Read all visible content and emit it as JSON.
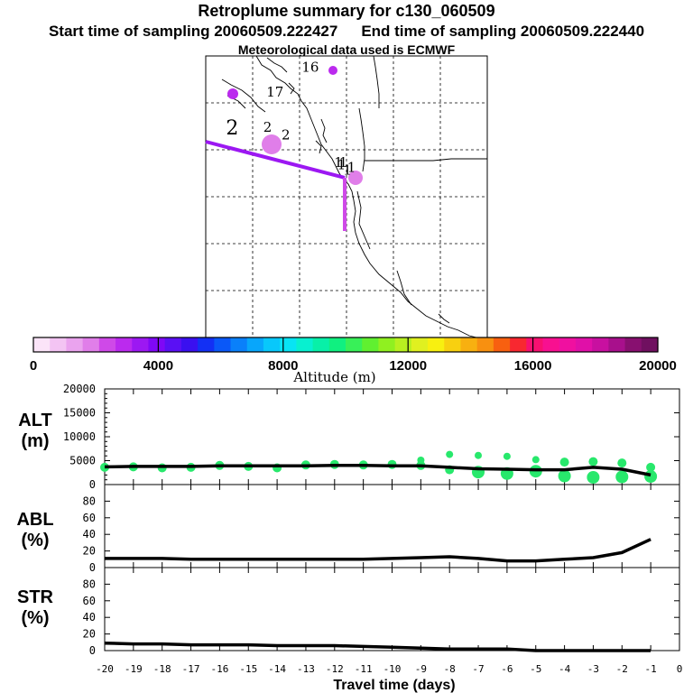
{
  "header": {
    "title": "Retroplume summary for c130_060509",
    "start": "Start time of sampling 20060509.222427",
    "end": "End time of sampling 20060509.222440",
    "met": "Meteorological data used is ECMWF"
  },
  "map": {
    "labels": [
      {
        "text": "16",
        "lon": 9.5,
        "lat": 10.6
      },
      {
        "text": "17",
        "lon": 6.0,
        "lat": 9.6
      },
      {
        "text": "2",
        "lon": 2.0,
        "lat": 8.1
      },
      {
        "text": "2",
        "lon": 5.7,
        "lat": 8.2
      },
      {
        "text": "2",
        "lon": 7.5,
        "lat": 7.9
      },
      {
        "text": "1",
        "lon": 12.7,
        "lat": 6.8
      },
      {
        "text": "1",
        "lon": 13.0,
        "lat": 6.7
      },
      {
        "text": "1",
        "lon": 13.2,
        "lat": 6.8
      },
      {
        "text": "1",
        "lon": 13.6,
        "lat": 6.5
      },
      {
        "text": "1",
        "lon": 14.0,
        "lat": 6.6
      }
    ]
  },
  "colorbar": {
    "label": "Altitude (m)",
    "ticks": [
      "0",
      "4000",
      "8000",
      "12000",
      "16000",
      "20000"
    ],
    "colors": [
      "#fbe4f8",
      "#f3c4f3",
      "#eaa3ee",
      "#e07ee9",
      "#cf49e8",
      "#bb2aee",
      "#9c18f2",
      "#7f08f6",
      "#5a10f4",
      "#3a10f0",
      "#1330f4",
      "#0a58f8",
      "#0a80fa",
      "#08a6fb",
      "#08c8fb",
      "#08e4f4",
      "#08f0d0",
      "#08f0a8",
      "#10f080",
      "#38f058",
      "#60f030",
      "#90f020",
      "#b8f020",
      "#e0f020",
      "#f8f010",
      "#f8d010",
      "#f8b010",
      "#f89010",
      "#f86010",
      "#f82830",
      "#f81070",
      "#f81090",
      "#f010a0",
      "#e010a8",
      "#c810a0",
      "#a8108c",
      "#881070",
      "#701060"
    ]
  },
  "chart_data": [
    {
      "type": "line",
      "name": "ALT",
      "ylabel": "ALT (m)",
      "ylim": [
        0,
        20000
      ],
      "yticks": [
        "20000",
        "15000",
        "10000",
        "5000",
        "0"
      ],
      "x": [
        -20,
        -19,
        -18,
        -17,
        -16,
        -15,
        -14,
        -13,
        -12,
        -11,
        -10,
        -9,
        -8,
        -7,
        -6,
        -5,
        -4,
        -3,
        -2,
        -1
      ],
      "values": [
        3700,
        3800,
        3800,
        3800,
        3900,
        3900,
        3900,
        3900,
        4000,
        4000,
        3900,
        3900,
        3600,
        3300,
        3200,
        3100,
        3100,
        3600,
        3200,
        2000
      ],
      "scatter": [
        [
          -20,
          3600
        ],
        [
          -19,
          3700
        ],
        [
          -18,
          3500
        ],
        [
          -17,
          3600
        ],
        [
          -16,
          4000
        ],
        [
          -15,
          3800
        ],
        [
          -14,
          3500
        ],
        [
          -13,
          4100
        ],
        [
          -12,
          4200
        ],
        [
          -11,
          4100
        ],
        [
          -10,
          4200
        ],
        [
          -9,
          4000
        ],
        [
          -9,
          5100
        ],
        [
          -8,
          3100
        ],
        [
          -8,
          6300
        ],
        [
          -7,
          2600
        ],
        [
          -7,
          6100
        ],
        [
          -6,
          2300
        ],
        [
          -6,
          5900
        ],
        [
          -5,
          2800
        ],
        [
          -5,
          5200
        ],
        [
          -4,
          1800
        ],
        [
          -4,
          4700
        ],
        [
          -3,
          1500
        ],
        [
          -3,
          4800
        ],
        [
          -2,
          1600
        ],
        [
          -2,
          4500
        ],
        [
          -1,
          1700
        ],
        [
          -1,
          3600
        ]
      ]
    },
    {
      "type": "line",
      "name": "ABL",
      "ylabel": "ABL (%)",
      "ylim": [
        0,
        100
      ],
      "yticks": [
        "80",
        "60",
        "40",
        "20",
        "0"
      ],
      "x": [
        -20,
        -19,
        -18,
        -17,
        -16,
        -15,
        -14,
        -13,
        -12,
        -11,
        -10,
        -9,
        -8,
        -7,
        -6,
        -5,
        -4,
        -3,
        -2,
        -1
      ],
      "values": [
        11,
        11,
        11,
        10,
        10,
        10,
        10,
        10,
        10,
        10,
        11,
        12,
        13,
        11,
        8,
        8,
        10,
        12,
        18,
        34
      ]
    },
    {
      "type": "line",
      "name": "STR",
      "ylabel": "STR (%)",
      "ylim": [
        0,
        100
      ],
      "yticks": [
        "80",
        "60",
        "40",
        "20",
        "0"
      ],
      "x": [
        -20,
        -19,
        -18,
        -17,
        -16,
        -15,
        -14,
        -13,
        -12,
        -11,
        -10,
        -9,
        -8,
        -7,
        -6,
        -5,
        -4,
        -3,
        -2,
        -1
      ],
      "values": [
        9,
        8,
        8,
        7,
        7,
        7,
        6,
        6,
        6,
        5,
        4,
        3,
        2,
        2,
        2,
        0,
        0,
        0,
        0,
        0
      ]
    }
  ],
  "xaxis": {
    "label": "Travel time (days)",
    "ticks": [
      "-20",
      "-19",
      "-18",
      "-17",
      "-16",
      "-15",
      "-14",
      "-13",
      "-12",
      "-11",
      "-10",
      "-9",
      "-8",
      "-7",
      "-6",
      "-5",
      "-4",
      "-3",
      "-2",
      "-1",
      "0"
    ]
  },
  "panel_labels": {
    "alt": [
      "ALT",
      "(m)"
    ],
    "abl": [
      "ABL",
      "(%)"
    ],
    "str": [
      "STR",
      "(%)"
    ]
  }
}
